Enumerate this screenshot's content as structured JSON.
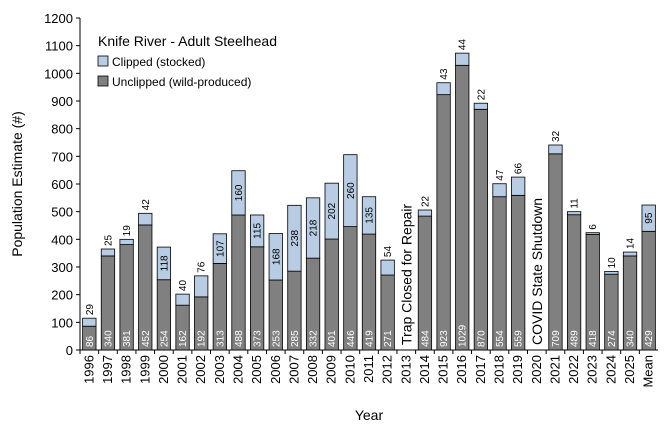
{
  "chart_data": {
    "type": "bar",
    "stacked": true,
    "title": "Knife River - Adult Steelhead",
    "xlabel": "Year",
    "ylabel": "Population Estimate (#)",
    "ylim": [
      0,
      1200
    ],
    "yticks": [
      0,
      100,
      200,
      300,
      400,
      500,
      600,
      700,
      800,
      900,
      1000,
      1100,
      1200
    ],
    "grid": false,
    "legend_position": "top-left",
    "categories": [
      "1996",
      "1997",
      "1998",
      "1999",
      "2000",
      "2001",
      "2002",
      "2003",
      "2004",
      "2005",
      "2006",
      "2007",
      "2008",
      "2009",
      "2010",
      "2011",
      "2012",
      "2013",
      "2014",
      "2015",
      "2016",
      "2017",
      "2018",
      "2019",
      "2020",
      "2021",
      "2022",
      "2023",
      "2024",
      "2025",
      "Mean"
    ],
    "series": [
      {
        "name": "Unclipped (wild-produced)",
        "color": "#808080",
        "values": [
          86,
          340,
          381,
          452,
          254,
          162,
          192,
          313,
          488,
          373,
          253,
          285,
          332,
          401,
          446,
          419,
          271,
          null,
          484,
          923,
          1029,
          870,
          554,
          559,
          null,
          709,
          489,
          418,
          274,
          340,
          429
        ]
      },
      {
        "name": "Clipped (stocked)",
        "color": "#b8cce4",
        "values": [
          29,
          25,
          19,
          42,
          118,
          40,
          76,
          107,
          160,
          115,
          168,
          238,
          218,
          202,
          260,
          135,
          54,
          null,
          22,
          43,
          44,
          22,
          47,
          66,
          null,
          32,
          11,
          6,
          10,
          14,
          95
        ]
      }
    ],
    "annotations": [
      {
        "category": "2013",
        "text": "Trap Closed for Repair"
      },
      {
        "category": "2020",
        "text": "COVID State Shutdown"
      }
    ]
  }
}
